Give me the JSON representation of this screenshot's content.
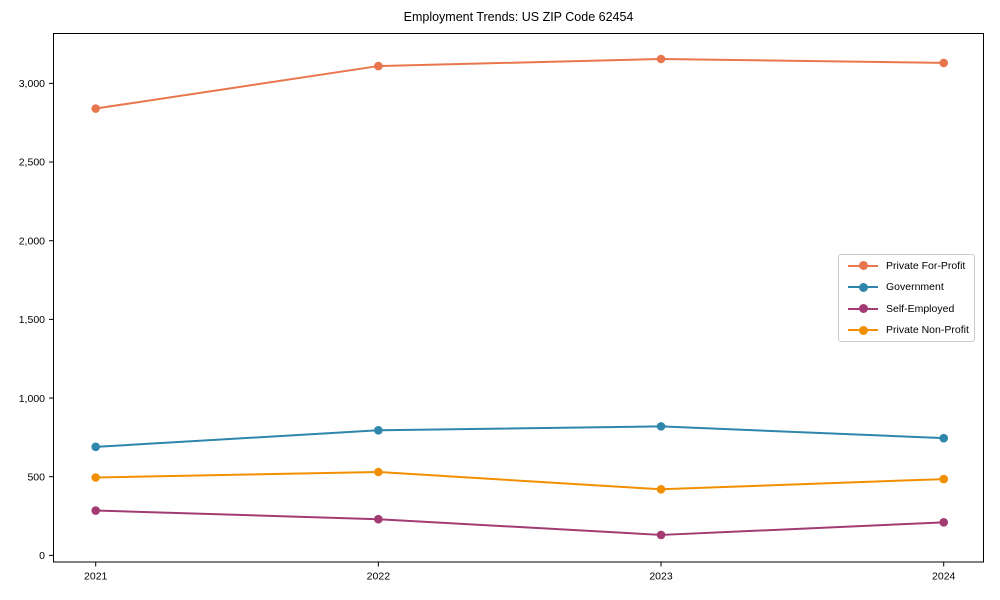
{
  "chart_data": {
    "type": "line",
    "title": "Employment Trends: US ZIP Code 62454",
    "x": [
      2021,
      2022,
      2023,
      2024
    ],
    "x_tick_labels": [
      "2021",
      "2022",
      "2023",
      "2024"
    ],
    "y_ticks": [
      0,
      500,
      1000,
      1500,
      2000,
      2500,
      3000
    ],
    "y_tick_labels": [
      "0",
      "500",
      "1,000",
      "1,500",
      "2,000",
      "2,500",
      "3,000"
    ],
    "ylim": [
      -42,
      3317
    ],
    "grid": false,
    "legend_position": "center-right",
    "series": [
      {
        "name": "Private For-Profit",
        "color": "#E8764D",
        "values": [
          2840,
          3110,
          3155,
          3130
        ]
      },
      {
        "name": "Government",
        "color": "#2E86AB",
        "values": [
          690,
          795,
          820,
          745
        ]
      },
      {
        "name": "Self-Employed",
        "color": "#A23B72",
        "values": [
          285,
          230,
          130,
          210
        ]
      },
      {
        "name": "Private Non-Profit",
        "color": "#F18F01",
        "values": [
          495,
          530,
          420,
          485
        ]
      }
    ]
  }
}
